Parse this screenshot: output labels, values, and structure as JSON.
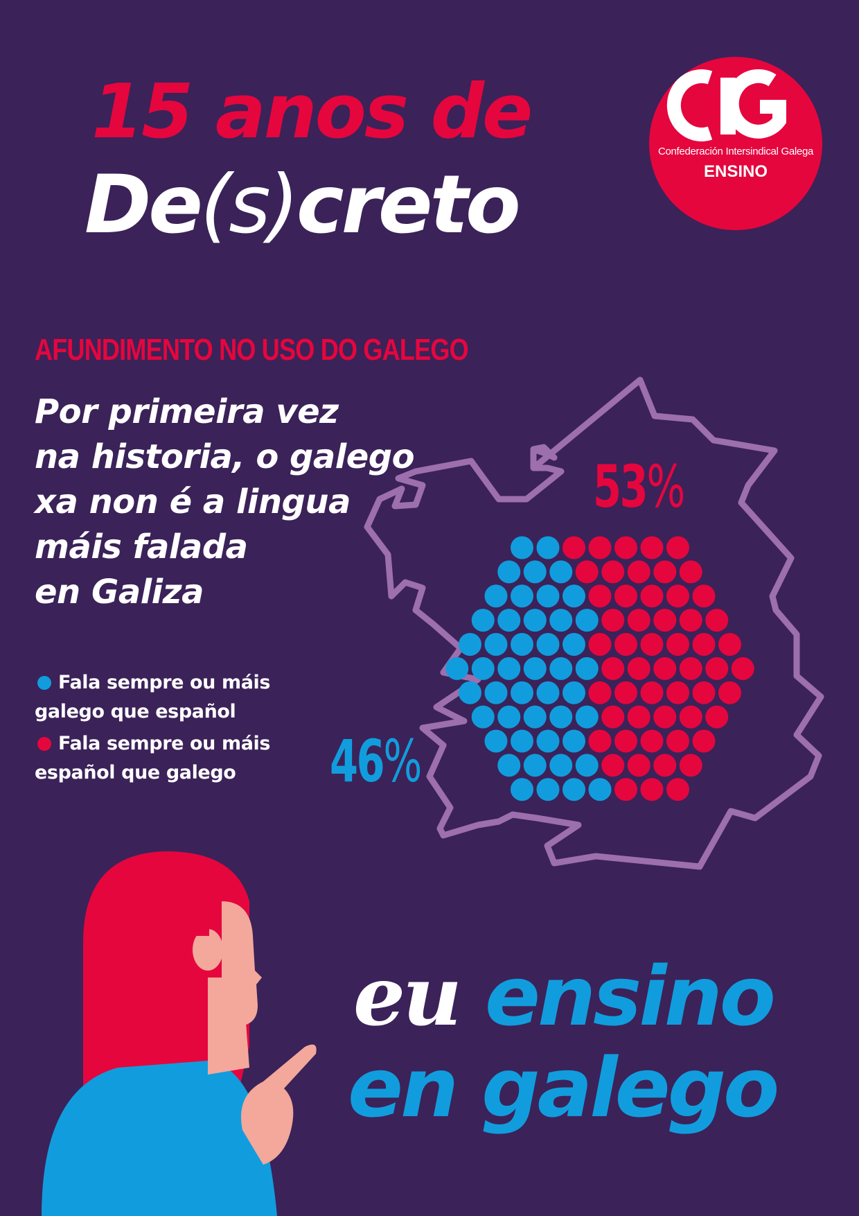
{
  "header": {
    "title_line1": "15 anos de",
    "title_line2_a": "De",
    "title_line2_b": "(s)",
    "title_line2_c": "creto"
  },
  "logo": {
    "mark": "CIG",
    "subtitle": "Confederación Intersindical Galega",
    "section": "ENSINO"
  },
  "main": {
    "section_title": "AFUNDIMENTO NO USO DO GALEGO",
    "headline_lines": [
      "Por primeira vez",
      "na historia, o galego",
      "xa non é a lingua",
      "máis falada",
      "en Galiza"
    ],
    "legend": [
      {
        "line1": "Fala sempre ou máis",
        "line2": "galego que español",
        "color": "#119ddd"
      },
      {
        "line1": "Fala sempre ou máis",
        "line2": "español que galego",
        "color": "#e5063e"
      }
    ]
  },
  "chart_data": {
    "type": "dot-matrix",
    "series": [
      {
        "name": "Fala sempre ou máis español que galego",
        "value": "53",
        "unit": "%",
        "color": "#e5063e"
      },
      {
        "name": "Fala sempre ou máis galego que español",
        "value": "46",
        "unit": "%",
        "color": "#119ddd"
      }
    ],
    "map_outline_color": "#9d6fad"
  },
  "slogan": {
    "word_eu": "eu",
    "word_ensino": "ensino",
    "line2": "en galego"
  },
  "colors": {
    "background": "#3b2259",
    "accent_red": "#e5063e",
    "accent_blue": "#119ddd",
    "skin": "#f3a89b"
  }
}
